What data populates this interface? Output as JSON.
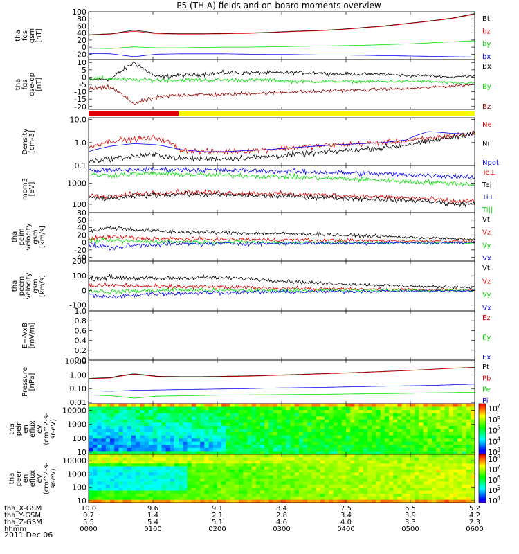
{
  "title": "P5 (TH-A) fields and on-board moments overview",
  "date_label": "2011 Dec 06",
  "colors": {
    "black": "#000000",
    "red": "#e00000",
    "green": "#00dd00",
    "blue": "#0000ee",
    "darkred": "#990000",
    "yellow": "#f7f700"
  },
  "chart_data": [
    {
      "type": "line",
      "ylabel": [
        "tha",
        "fgs",
        "gsm",
        "[nT]"
      ],
      "yscale": "linear",
      "ylim": [
        -35,
        100
      ],
      "yticks": [
        100,
        80,
        60,
        40,
        20,
        0,
        -20
      ],
      "ytick_labels": [
        "100",
        "80",
        "60",
        "40",
        "20",
        "0",
        "-20"
      ],
      "series": [
        {
          "name": "Bt",
          "color": "#000000",
          "kind": "smooth",
          "values": [
            35,
            38,
            48,
            40,
            38,
            38,
            39,
            40,
            42,
            45,
            47,
            50,
            55,
            60,
            67,
            74,
            82,
            95
          ]
        },
        {
          "name": "bz",
          "color": "#e00000",
          "kind": "smooth",
          "values": [
            34,
            37,
            45,
            38,
            37,
            37,
            38,
            39,
            41,
            44,
            46,
            49,
            54,
            59,
            66,
            73,
            81,
            93
          ]
        },
        {
          "name": "by",
          "color": "#00dd00",
          "kind": "smooth",
          "values": [
            -3,
            -4,
            1,
            -2,
            -2,
            -1,
            0,
            0,
            1,
            2,
            3,
            4,
            5,
            7,
            9,
            12,
            15,
            18
          ]
        },
        {
          "name": "bx",
          "color": "#0000ee",
          "kind": "smooth",
          "values": [
            -18,
            -19,
            -27,
            -20,
            -19,
            -19,
            -19,
            -20,
            -21,
            -21,
            -22,
            -22,
            -23,
            -24,
            -25,
            -26,
            -27,
            -28
          ]
        }
      ]
    },
    {
      "type": "line",
      "ylabel": [
        "tha",
        "fgs",
        "gse-dp",
        "[nT]"
      ],
      "yscale": "linear",
      "ylim": [
        -22,
        12
      ],
      "yticks": [
        10,
        5,
        0,
        -5,
        -10,
        -15,
        -20
      ],
      "ytick_labels": [
        "10",
        "5",
        "0",
        "-5",
        "-10",
        "-15",
        "-20"
      ],
      "series": [
        {
          "name": "Bx",
          "color": "#000000",
          "kind": "noisy",
          "values": [
            -2,
            -1,
            10,
            0,
            1,
            2,
            3,
            3,
            3,
            3,
            3,
            2,
            2,
            2,
            1,
            1,
            0,
            1
          ]
        },
        {
          "name": "By",
          "color": "#00dd00",
          "kind": "noisy",
          "values": [
            -1,
            -1,
            -2,
            -2,
            -2,
            -2,
            -2,
            -2,
            -2,
            -3,
            -3,
            -3,
            -3,
            -3,
            -3,
            -3,
            -4,
            -4
          ]
        },
        {
          "name": "Bz",
          "color": "#990000",
          "kind": "noisy",
          "values": [
            -8,
            -7,
            -18,
            -14,
            -12,
            -12,
            -12,
            -11,
            -11,
            -10,
            -10,
            -9,
            -9,
            -8,
            -8,
            -7,
            -6,
            -5
          ]
        }
      ]
    },
    {
      "type": "line",
      "ylabel": [
        "Density",
        "[cm-3]"
      ],
      "yscale": "log",
      "ylim": [
        0.1,
        12
      ],
      "yticks": [
        10,
        1,
        0.1
      ],
      "ytick_labels": [
        "10.0",
        "1.0",
        "0.1"
      ],
      "series": [
        {
          "name": "Ne",
          "color": "#e00000",
          "kind": "noisy",
          "values": [
            0.6,
            1.2,
            1.4,
            1.6,
            0.5,
            0.4,
            0.4,
            0.45,
            0.5,
            0.6,
            0.7,
            0.8,
            0.9,
            1.0,
            1.2,
            1.5,
            2.0,
            2.5
          ]
        },
        {
          "name": "Ni",
          "color": "#000000",
          "kind": "noisy",
          "values": [
            0.15,
            0.2,
            0.25,
            0.3,
            0.2,
            0.2,
            0.2,
            0.22,
            0.25,
            0.3,
            0.35,
            0.42,
            0.5,
            0.6,
            0.8,
            1.1,
            1.7,
            2.7
          ]
        },
        {
          "name": "Npot",
          "color": "#0000ee",
          "kind": "smooth",
          "values": [
            0.4,
            0.7,
            0.9,
            0.8,
            0.5,
            0.4,
            0.4,
            0.45,
            0.5,
            0.6,
            0.7,
            0.8,
            0.9,
            1.0,
            1.3,
            3.0,
            2.5,
            2.3
          ]
        }
      ]
    },
    {
      "type": "line",
      "ylabel": [
        "mom3",
        "[eV]"
      ],
      "yscale": "log",
      "ylim": [
        40,
        7000
      ],
      "yticks": [
        1000,
        100
      ],
      "ytick_labels": [
        "1000",
        "100"
      ],
      "series": [
        {
          "name": "Te⊥",
          "color": "#e00000",
          "kind": "noisy",
          "values": [
            250,
            220,
            300,
            350,
            380,
            360,
            350,
            330,
            320,
            300,
            280,
            260,
            240,
            220,
            200,
            180,
            130,
            150
          ]
        },
        {
          "name": "Te||",
          "color": "#000000",
          "kind": "noisy",
          "values": [
            200,
            180,
            240,
            280,
            300,
            290,
            280,
            260,
            250,
            240,
            220,
            200,
            190,
            170,
            150,
            140,
            100,
            110
          ]
        },
        {
          "name": "Ti⊥",
          "color": "#0000ee",
          "kind": "noisy",
          "values": [
            4200,
            4000,
            4500,
            4600,
            4500,
            4300,
            4200,
            4000,
            3800,
            3600,
            3400,
            3200,
            3000,
            2800,
            2600,
            2400,
            2200,
            2000
          ]
        },
        {
          "name": "Ti||",
          "color": "#00dd00",
          "kind": "noisy",
          "values": [
            2500,
            2400,
            2800,
            2900,
            2700,
            2500,
            2400,
            2300,
            2100,
            2000,
            1800,
            1700,
            1500,
            1400,
            1200,
            1100,
            1000,
            900
          ]
        }
      ]
    },
    {
      "type": "line",
      "ylabel": [
        "tha",
        "peim",
        "velocity",
        "gsm",
        "[km/s]"
      ],
      "yscale": "linear",
      "ylim": [
        -50,
        80
      ],
      "yticks": [
        80,
        60,
        40,
        20,
        0,
        -20,
        -40
      ],
      "ytick_labels": [
        "80",
        "60",
        "40",
        "20",
        "0",
        "-20",
        "-40"
      ],
      "series": [
        {
          "name": "Vt",
          "color": "#000000",
          "kind": "noisy",
          "values": [
            30,
            40,
            35,
            30,
            28,
            27,
            26,
            25,
            24,
            23,
            22,
            20,
            18,
            16,
            14,
            12,
            10,
            8
          ]
        },
        {
          "name": "Vz",
          "color": "#e00000",
          "kind": "noisy",
          "values": [
            10,
            15,
            12,
            10,
            9,
            9,
            8,
            8,
            7,
            7,
            6,
            6,
            5,
            5,
            4,
            4,
            3,
            3
          ]
        },
        {
          "name": "Vy",
          "color": "#00dd00",
          "kind": "noisy",
          "values": [
            5,
            5,
            3,
            2,
            2,
            1,
            1,
            1,
            0,
            0,
            0,
            0,
            -1,
            -1,
            -1,
            -1,
            -1,
            -1
          ]
        },
        {
          "name": "Vx",
          "color": "#0000ee",
          "kind": "noisy",
          "values": [
            -5,
            -15,
            -8,
            -5,
            -4,
            -4,
            -3,
            -3,
            -3,
            -2,
            -2,
            -2,
            -2,
            -1,
            -1,
            -1,
            -1,
            0
          ]
        }
      ]
    },
    {
      "type": "line",
      "ylabel": [
        "tha",
        "peem",
        "velocity",
        "gsm",
        "[km/s]"
      ],
      "yscale": "linear",
      "ylim": [
        -140,
        200
      ],
      "yticks": [
        200,
        100,
        0,
        -100
      ],
      "ytick_labels": [
        "200",
        "100",
        "0",
        "-100"
      ],
      "series": [
        {
          "name": "Vt",
          "color": "#000000",
          "kind": "noisy",
          "values": [
            80,
            90,
            85,
            80,
            85,
            90,
            85,
            80,
            70,
            60,
            50,
            45,
            40,
            35,
            30,
            25,
            25,
            20
          ]
        },
        {
          "name": "Vz",
          "color": "#e00000",
          "kind": "noisy",
          "values": [
            30,
            35,
            30,
            25,
            25,
            25,
            20,
            20,
            15,
            15,
            10,
            10,
            8,
            8,
            6,
            5,
            5,
            4
          ]
        },
        {
          "name": "Vy",
          "color": "#00dd00",
          "kind": "noisy",
          "values": [
            0,
            -10,
            -5,
            0,
            5,
            0,
            0,
            0,
            0,
            0,
            0,
            0,
            0,
            0,
            0,
            0,
            0,
            0
          ]
        },
        {
          "name": "Vx",
          "color": "#0000ee",
          "kind": "noisy",
          "values": [
            -30,
            -50,
            -30,
            -20,
            -20,
            -15,
            -15,
            -12,
            -10,
            -10,
            -8,
            -8,
            -6,
            -5,
            -5,
            -4,
            -4,
            -3
          ]
        }
      ]
    },
    {
      "type": "line",
      "ylabel": [
        "E=-VxB",
        "[mV/m]"
      ],
      "yscale": "linear",
      "ylim": [
        0,
        1
      ],
      "yticks": [
        1.0,
        0.8,
        0.6,
        0.4,
        0.2,
        0.0
      ],
      "ytick_labels": [
        "1.0",
        "0.8",
        "0.6",
        "0.4",
        "0.2",
        "0.0"
      ],
      "series": [
        {
          "name": "Ez",
          "color": "#e00000",
          "kind": "none",
          "values": []
        },
        {
          "name": "Ey",
          "color": "#00dd00",
          "kind": "none",
          "values": []
        },
        {
          "name": "Ex",
          "color": "#0000ee",
          "kind": "none",
          "values": []
        }
      ]
    },
    {
      "type": "line",
      "ylabel": [
        "Pressure",
        "[nPa]"
      ],
      "yscale": "log",
      "ylim": [
        0.008,
        12
      ],
      "yticks": [
        10,
        1,
        0.1,
        0.01
      ],
      "ytick_labels": [
        "10.00",
        "1.00",
        "0.10",
        "0.01"
      ],
      "series": [
        {
          "name": "Pt",
          "color": "#000000",
          "kind": "smooth",
          "values": [
            0.55,
            0.65,
            1.2,
            0.8,
            0.75,
            0.75,
            0.8,
            0.85,
            0.95,
            1.05,
            1.2,
            1.35,
            1.55,
            1.8,
            2.1,
            2.5,
            3.1,
            3.6
          ]
        },
        {
          "name": "Pb",
          "color": "#e00000",
          "kind": "smooth",
          "values": [
            0.5,
            0.6,
            1.1,
            0.75,
            0.7,
            0.7,
            0.75,
            0.8,
            0.9,
            1.0,
            1.15,
            1.3,
            1.5,
            1.75,
            2.05,
            2.45,
            3.0,
            3.5
          ]
        },
        {
          "name": "Pe",
          "color": "#00dd00",
          "kind": "smooth",
          "values": [
            0.035,
            0.03,
            0.02,
            0.028,
            0.03,
            0.032,
            0.034,
            0.035,
            0.036,
            0.037,
            0.038,
            0.04,
            0.042,
            0.044,
            0.046,
            0.05,
            0.052,
            0.055
          ]
        },
        {
          "name": "Pi",
          "color": "#0000ee",
          "kind": "smooth",
          "values": [
            0.07,
            0.065,
            0.075,
            0.08,
            0.085,
            0.09,
            0.095,
            0.1,
            0.11,
            0.115,
            0.12,
            0.13,
            0.14,
            0.15,
            0.16,
            0.17,
            0.19,
            0.21
          ]
        }
      ]
    },
    {
      "type": "heatmap",
      "ylabel": [
        "tha",
        "peir",
        "en",
        "eflux",
        "eV",
        "(cm^2-s-",
        "sr-eV)"
      ],
      "yscale": "log",
      "ylim": [
        7,
        30000
      ],
      "yticks": [
        10000,
        1000,
        100,
        10
      ],
      "ytick_labels": [
        "10000",
        "1000",
        "100",
        "10"
      ],
      "colorbar": {
        "labels": [
          "10",
          "10",
          "10",
          "10",
          "10"
        ],
        "exponents": [
          "7",
          "6",
          "5",
          "4",
          "3"
        ],
        "log_range": [
          2.7,
          7.3
        ]
      }
    },
    {
      "type": "heatmap",
      "ylabel": [
        "tha",
        "peer",
        "en",
        "eflux",
        "eV",
        "(cm^2-s-",
        "sr-eV)"
      ],
      "yscale": "log",
      "ylim": [
        7,
        30000
      ],
      "yticks": [
        10000,
        1000,
        100,
        10
      ],
      "ytick_labels": [
        "10000",
        "1000",
        "100",
        "10"
      ],
      "colorbar": {
        "labels": [
          "10",
          "10",
          "10",
          "10",
          "10"
        ],
        "exponents": [
          "8",
          "7",
          "6",
          "5",
          "4"
        ],
        "log_range": [
          3.6,
          8.2
        ]
      }
    }
  ],
  "xaxis": {
    "tick_hhmm": [
      "0000",
      "0100",
      "0200",
      "0300",
      "0400",
      "0500",
      "0600"
    ],
    "row_labels": [
      "tha_X-GSM",
      "tha_Y-GSM",
      "tha_Z-GSM",
      "hhmm"
    ],
    "x_gsm": [
      "10.0",
      "9.6",
      "9.1",
      "8.4",
      "7.5",
      "6.5",
      "5.2"
    ],
    "y_gsm": [
      "0.7",
      "1.4",
      "2.1",
      "2.8",
      "3.4",
      "3.9",
      "4.2"
    ],
    "z_gsm": [
      "5.5",
      "5.4",
      "5.1",
      "4.6",
      "4.0",
      "3.3",
      "2.3"
    ]
  },
  "mode_bar": {
    "segments": [
      {
        "color": "#e00000",
        "from_hours": 0,
        "to_hours": 1.4
      },
      {
        "color": "#f7f700",
        "from_hours": 1.4,
        "to_hours": 6
      }
    ]
  }
}
